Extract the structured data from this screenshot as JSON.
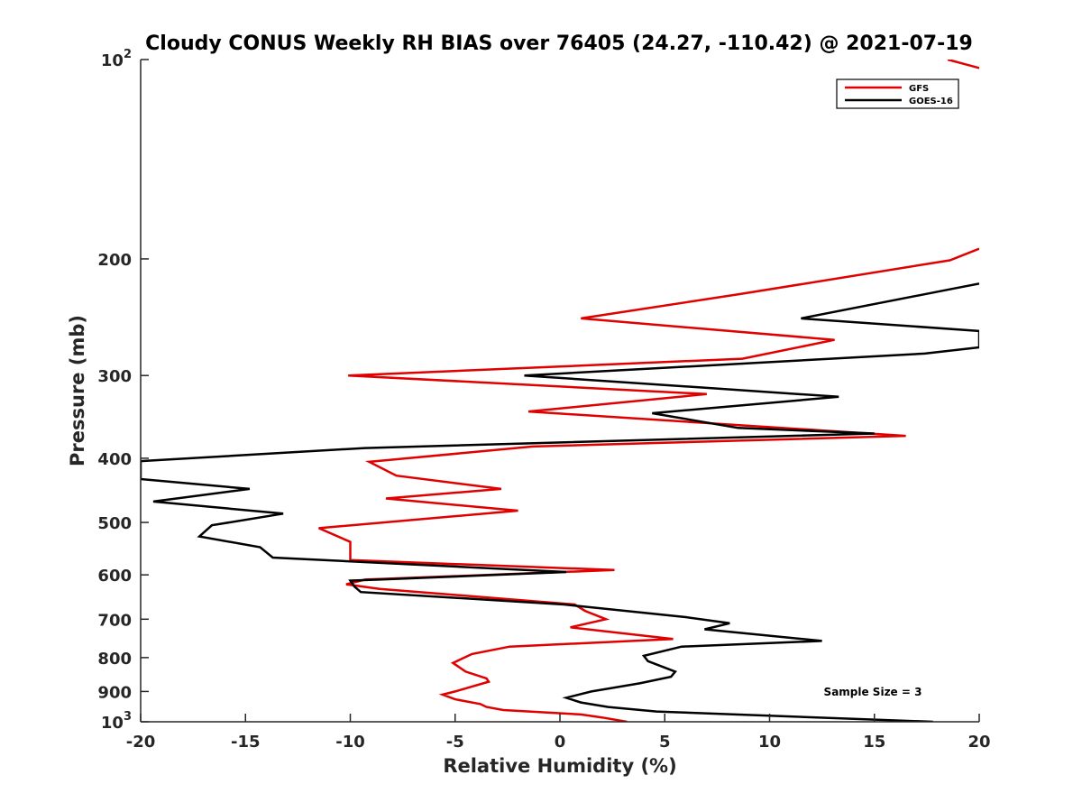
{
  "chart_data": {
    "type": "line",
    "title": "Cloudy CONUS Weekly RH BIAS over 76405 (24.27, -110.42) @ 2021-07-19",
    "xlabel": "Relative Humidity (%)",
    "ylabel": "Pressure (mb)",
    "xlim": [
      -20,
      20
    ],
    "ylim": [
      100,
      1000
    ],
    "yscale": "log",
    "y_reversed": true,
    "grid": false,
    "legend_position": "top-right",
    "x_ticks": [
      -20,
      -15,
      -10,
      -5,
      0,
      5,
      10,
      15,
      20
    ],
    "x_tick_labels": [
      "-20",
      "-15",
      "-10",
      "-5",
      "0",
      "5",
      "10",
      "15",
      "20"
    ],
    "y_ticks": [
      100,
      200,
      300,
      400,
      500,
      600,
      700,
      800,
      900,
      1000
    ],
    "y_tick_labels": [
      {
        "base": "10",
        "exp": "2"
      },
      {
        "base": "200",
        "exp": ""
      },
      {
        "base": "300",
        "exp": ""
      },
      {
        "base": "400",
        "exp": ""
      },
      {
        "base": "500",
        "exp": ""
      },
      {
        "base": "600",
        "exp": ""
      },
      {
        "base": "700",
        "exp": ""
      },
      {
        "base": "800",
        "exp": ""
      },
      {
        "base": "900",
        "exp": ""
      },
      {
        "base": "10",
        "exp": "3"
      }
    ],
    "annotation": "Sample Size = 3",
    "series": [
      {
        "name": "GFS",
        "color": "#e00000",
        "points": [
          [
            18.5,
            100
          ],
          [
            20.5,
            104
          ],
          [
            20,
            193
          ],
          [
            18.6,
            201
          ],
          [
            8.6,
            226
          ],
          [
            1.0,
            246
          ],
          [
            13.1,
            265
          ],
          [
            8.7,
            283
          ],
          [
            -10.1,
            300
          ],
          [
            7.0,
            320
          ],
          [
            -1.5,
            340
          ],
          [
            16.5,
            370
          ],
          [
            -1.3,
            384
          ],
          [
            -9.1,
            405
          ],
          [
            -7.8,
            425
          ],
          [
            -2.8,
            445
          ],
          [
            -8.3,
            460
          ],
          [
            -2.0,
            480
          ],
          [
            -11.5,
            510
          ],
          [
            -10.0,
            535
          ],
          [
            -10.0,
            570
          ],
          [
            2.6,
            590
          ],
          [
            -9.3,
            610
          ],
          [
            -10.2,
            620
          ],
          [
            -8.6,
            630
          ],
          [
            0.7,
            665
          ],
          [
            1.2,
            680
          ],
          [
            2.2,
            700
          ],
          [
            0.5,
            720
          ],
          [
            5.4,
            750
          ],
          [
            -2.4,
            770
          ],
          [
            -4.2,
            790
          ],
          [
            -5.1,
            815
          ],
          [
            -4.5,
            840
          ],
          [
            -3.5,
            860
          ],
          [
            -3.4,
            870
          ],
          [
            -5.0,
            900
          ],
          [
            -5.6,
            910
          ],
          [
            -5.0,
            925
          ],
          [
            -3.8,
            940
          ],
          [
            -3.5,
            950
          ],
          [
            -2.7,
            960
          ],
          [
            1.0,
            975
          ],
          [
            2.0,
            985
          ],
          [
            3.2,
            1000
          ]
        ]
      },
      {
        "name": "GOES-16",
        "color": "#000000",
        "points": [
          [
            20,
            218
          ],
          [
            18.7,
            222
          ],
          [
            11.5,
            246
          ],
          [
            20,
            257
          ],
          [
            20,
            272
          ],
          [
            17.4,
            278
          ],
          [
            -1.7,
            300
          ],
          [
            13.3,
            323
          ],
          [
            4.4,
            342
          ],
          [
            8.5,
            360
          ],
          [
            15.0,
            367
          ],
          [
            -9.3,
            386
          ],
          [
            -20.0,
            404
          ],
          [
            -20.0,
            430
          ],
          [
            -14.8,
            445
          ],
          [
            -19.4,
            465
          ],
          [
            -13.2,
            485
          ],
          [
            -16.6,
            505
          ],
          [
            -17.2,
            525
          ],
          [
            -14.3,
            545
          ],
          [
            -13.7,
            565
          ],
          [
            0.3,
            594
          ],
          [
            -8.6,
            610
          ],
          [
            -10.0,
            612
          ],
          [
            -9.8,
            625
          ],
          [
            -9.5,
            637
          ],
          [
            0.2,
            665
          ],
          [
            6.0,
            695
          ],
          [
            8.1,
            710
          ],
          [
            6.9,
            725
          ],
          [
            12.5,
            755
          ],
          [
            5.8,
            770
          ],
          [
            4.0,
            795
          ],
          [
            4.2,
            810
          ],
          [
            5.5,
            840
          ],
          [
            5.3,
            855
          ],
          [
            3.8,
            875
          ],
          [
            1.5,
            900
          ],
          [
            0.3,
            920
          ],
          [
            1.0,
            935
          ],
          [
            2.3,
            950
          ],
          [
            4.6,
            965
          ],
          [
            17.8,
            1000
          ]
        ]
      }
    ]
  }
}
